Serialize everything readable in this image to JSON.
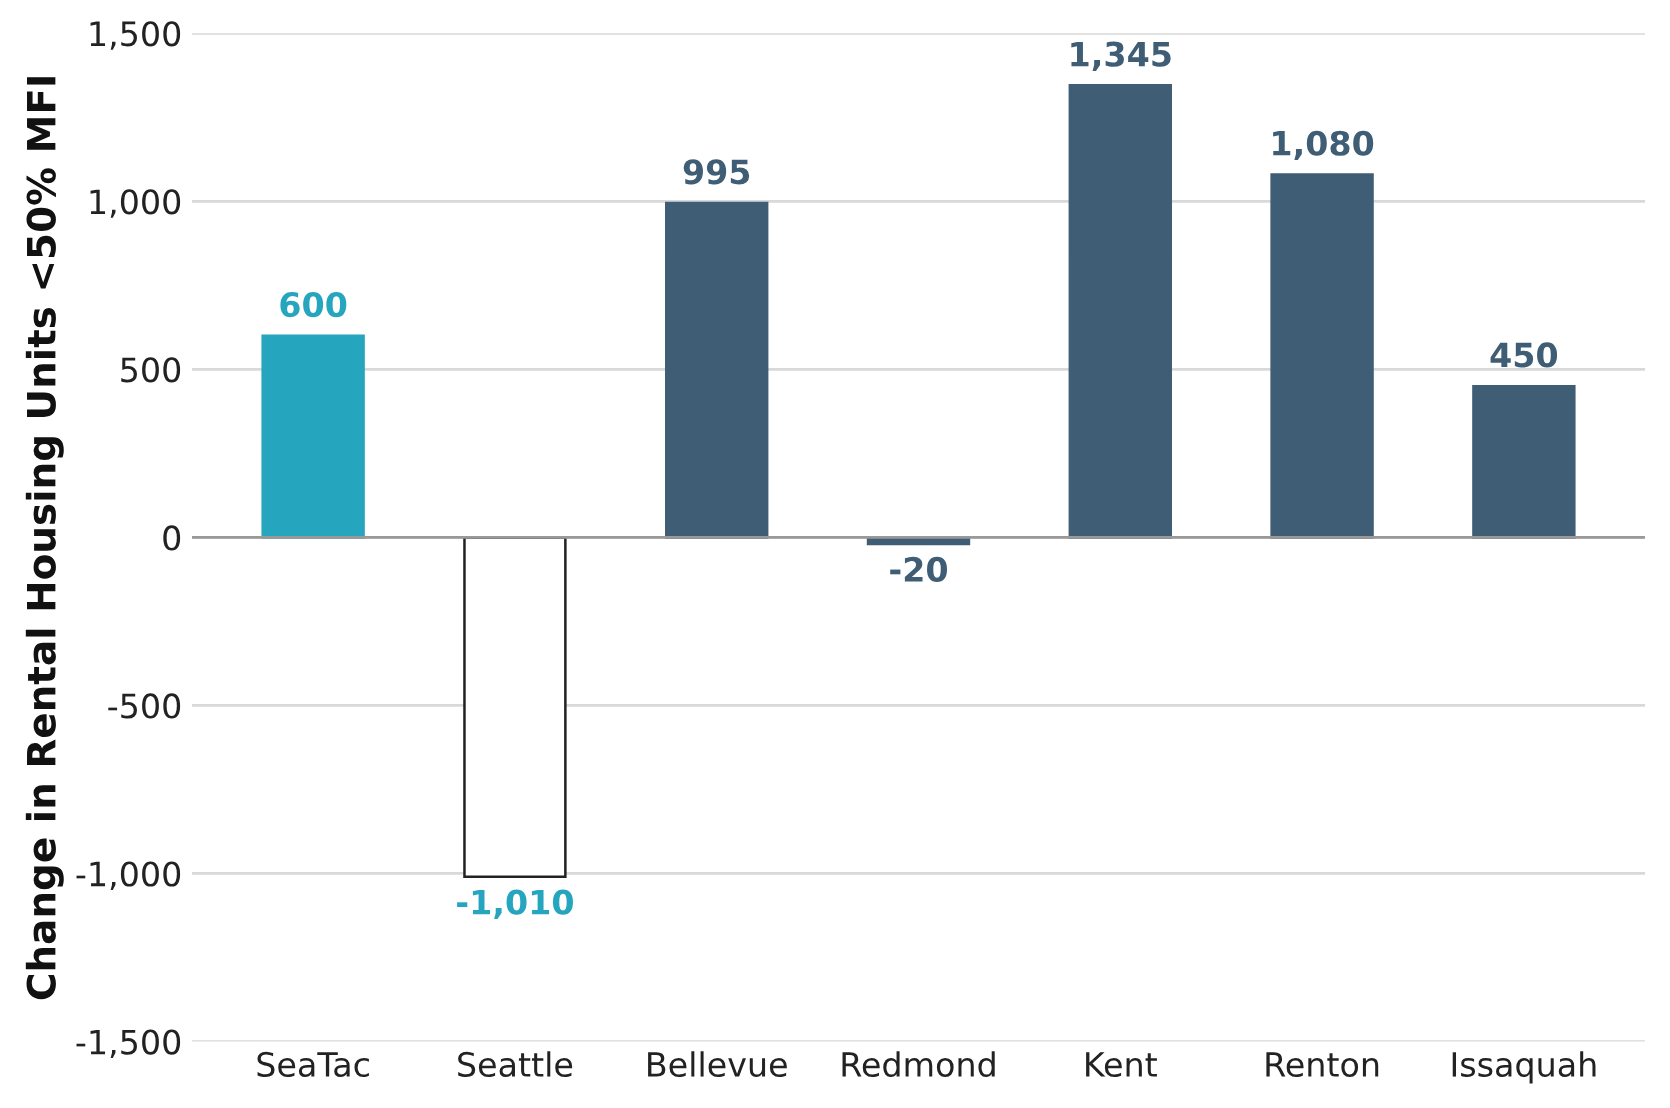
{
  "chart_data": {
    "type": "bar",
    "ylabel": "Change in Rental Housing Units <50% MFI",
    "categories": [
      "SeaTac",
      "Seattle",
      "Bellevue",
      "Redmond",
      "Kent",
      "Renton",
      "Issaquah"
    ],
    "values": [
      600,
      -1010,
      995,
      -20,
      1345,
      1080,
      450
    ],
    "colors": [
      "#26a5be",
      "#ffffff",
      "#3f5e75",
      "#3f5e75",
      "#3f5e75",
      "#3f5e75",
      "#3f5e75"
    ],
    "value_labels": [
      "600",
      "-1,010",
      "995",
      "-20",
      "1,345",
      "1,080",
      "450"
    ],
    "ylim": [
      -1500,
      1500
    ],
    "yticks": [
      {
        "value": -1500,
        "label": "-1,500"
      },
      {
        "value": -1000,
        "label": "-1,000"
      },
      {
        "value": -500,
        "label": "-500"
      },
      0,
      500,
      {
        "value": 1000,
        "label": "1,000"
      },
      {
        "value": 1500,
        "label": "1,500"
      }
    ],
    "grid": "y",
    "legend": false
  }
}
